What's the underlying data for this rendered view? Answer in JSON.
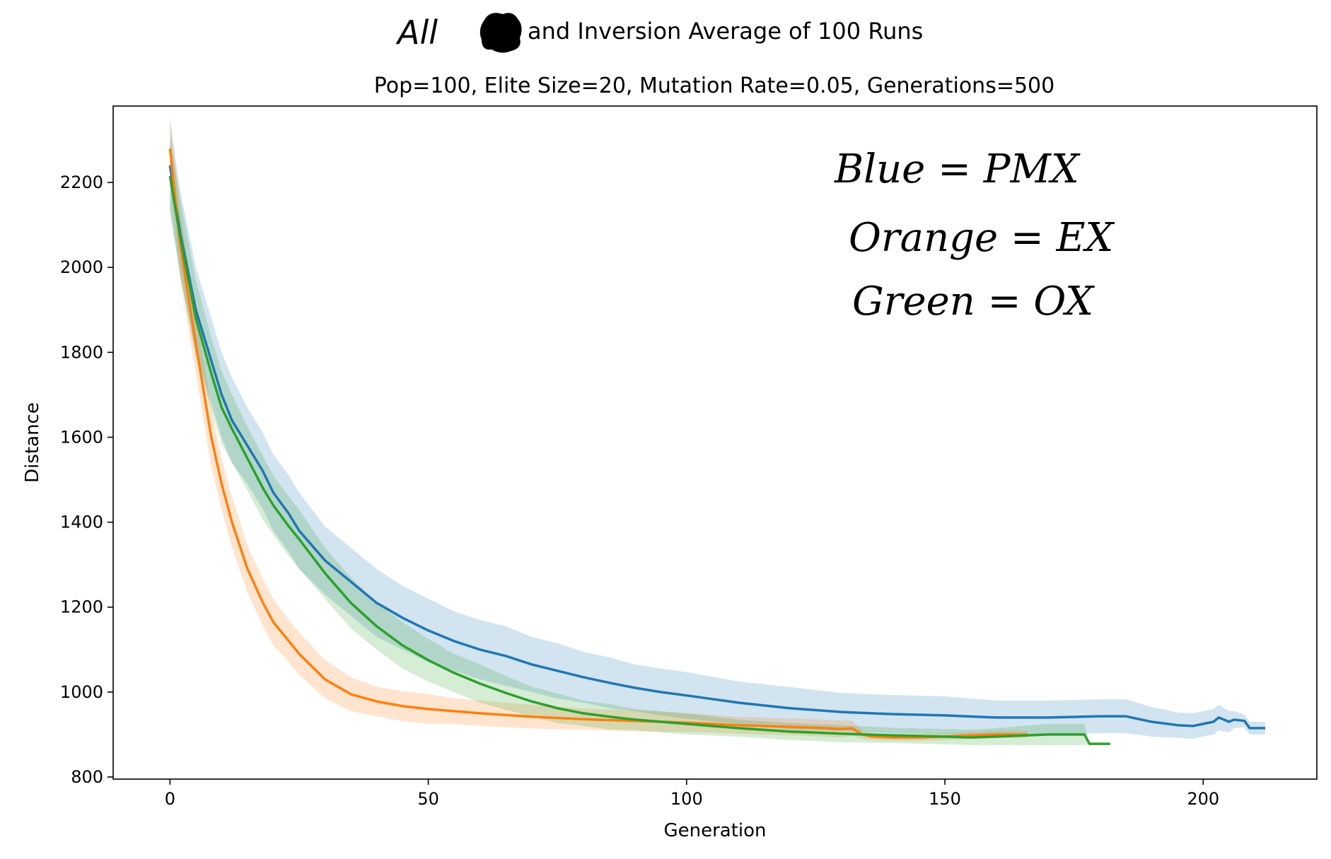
{
  "chart_data": {
    "type": "line",
    "title_handwritten_prefix": "All",
    "title": "and Inversion Average of 100 Runs",
    "subtitle": "Pop=100, Elite Size=20, Mutation Rate=0.05, Generations=500",
    "xlabel": "Generation",
    "ylabel": "Distance",
    "xlim": [
      -11,
      222
    ],
    "ylim": [
      795,
      2380
    ],
    "xticks": [
      0,
      50,
      100,
      150,
      200
    ],
    "yticks": [
      800,
      1000,
      1200,
      1400,
      1600,
      1800,
      2000,
      2200
    ],
    "grid": false,
    "legend": "none",
    "annotations": [
      {
        "text": "Blue = PMX",
        "handwritten": true
      },
      {
        "text": "Orange = EX",
        "handwritten": true
      },
      {
        "text": "Green = OX",
        "handwritten": true
      }
    ],
    "series": [
      {
        "color": "#1f77b4",
        "band_color": "#1f77b4",
        "x": [
          0,
          2,
          5,
          8,
          10,
          12,
          15,
          18,
          20,
          23,
          25,
          30,
          35,
          40,
          45,
          50,
          55,
          60,
          65,
          70,
          75,
          80,
          85,
          90,
          95,
          100,
          110,
          120,
          130,
          140,
          150,
          160,
          170,
          180,
          185,
          190,
          195,
          198,
          200,
          202,
          203,
          205,
          206,
          208,
          209,
          212
        ],
        "y": [
          2240,
          2080,
          1900,
          1780,
          1700,
          1640,
          1580,
          1520,
          1470,
          1420,
          1380,
          1310,
          1260,
          1210,
          1175,
          1145,
          1120,
          1100,
          1085,
          1065,
          1050,
          1035,
          1022,
          1010,
          1000,
          992,
          975,
          962,
          953,
          948,
          945,
          940,
          940,
          943,
          943,
          930,
          922,
          920,
          925,
          930,
          940,
          930,
          935,
          932,
          915,
          915
        ],
        "band": [
          100,
          100,
          100,
          100,
          100,
          100,
          90,
          90,
          90,
          90,
          90,
          80,
          80,
          80,
          75,
          75,
          70,
          70,
          70,
          65,
          65,
          60,
          60,
          55,
          55,
          55,
          50,
          50,
          45,
          45,
          45,
          40,
          40,
          40,
          40,
          35,
          30,
          30,
          30,
          30,
          30,
          25,
          20,
          15,
          15,
          15
        ]
      },
      {
        "color": "#ff7f0e",
        "band_color": "#ff7f0e",
        "x": [
          0,
          2,
          5,
          8,
          10,
          12,
          15,
          18,
          20,
          23,
          25,
          30,
          35,
          40,
          45,
          50,
          55,
          60,
          70,
          80,
          90,
          100,
          110,
          120,
          125,
          130,
          132,
          134,
          136,
          140,
          145,
          150,
          155,
          160,
          166
        ],
        "y": [
          2280,
          2050,
          1820,
          1600,
          1490,
          1400,
          1290,
          1210,
          1165,
          1120,
          1090,
          1030,
          995,
          978,
          967,
          960,
          955,
          950,
          942,
          936,
          932,
          928,
          922,
          918,
          916,
          913,
          915,
          900,
          895,
          893,
          893,
          895,
          898,
          900,
          900
        ],
        "band": [
          80,
          80,
          70,
          70,
          60,
          60,
          55,
          55,
          55,
          50,
          50,
          45,
          40,
          35,
          35,
          35,
          30,
          30,
          28,
          25,
          25,
          22,
          20,
          20,
          20,
          20,
          18,
          10,
          8,
          8,
          8,
          8,
          8,
          8,
          8
        ]
      },
      {
        "color": "#2ca02c",
        "band_color": "#2ca02c",
        "x": [
          0,
          2,
          5,
          8,
          10,
          12,
          15,
          18,
          20,
          23,
          25,
          30,
          35,
          40,
          45,
          50,
          55,
          60,
          65,
          70,
          75,
          80,
          85,
          90,
          95,
          100,
          110,
          120,
          130,
          140,
          150,
          155,
          160,
          170,
          174,
          176,
          177,
          178,
          182
        ],
        "y": [
          2215,
          2070,
          1880,
          1750,
          1670,
          1620,
          1550,
          1480,
          1440,
          1390,
          1360,
          1280,
          1210,
          1155,
          1110,
          1075,
          1045,
          1020,
          998,
          978,
          962,
          950,
          942,
          935,
          930,
          925,
          915,
          907,
          902,
          898,
          895,
          893,
          895,
          900,
          900,
          900,
          900,
          878,
          878
        ],
        "band": [
          90,
          90,
          90,
          85,
          85,
          80,
          75,
          75,
          70,
          70,
          70,
          60,
          60,
          55,
          55,
          50,
          45,
          45,
          40,
          35,
          35,
          30,
          30,
          25,
          25,
          25,
          20,
          20,
          20,
          18,
          18,
          18,
          20,
          25,
          25,
          25,
          25,
          0,
          0
        ]
      }
    ]
  }
}
